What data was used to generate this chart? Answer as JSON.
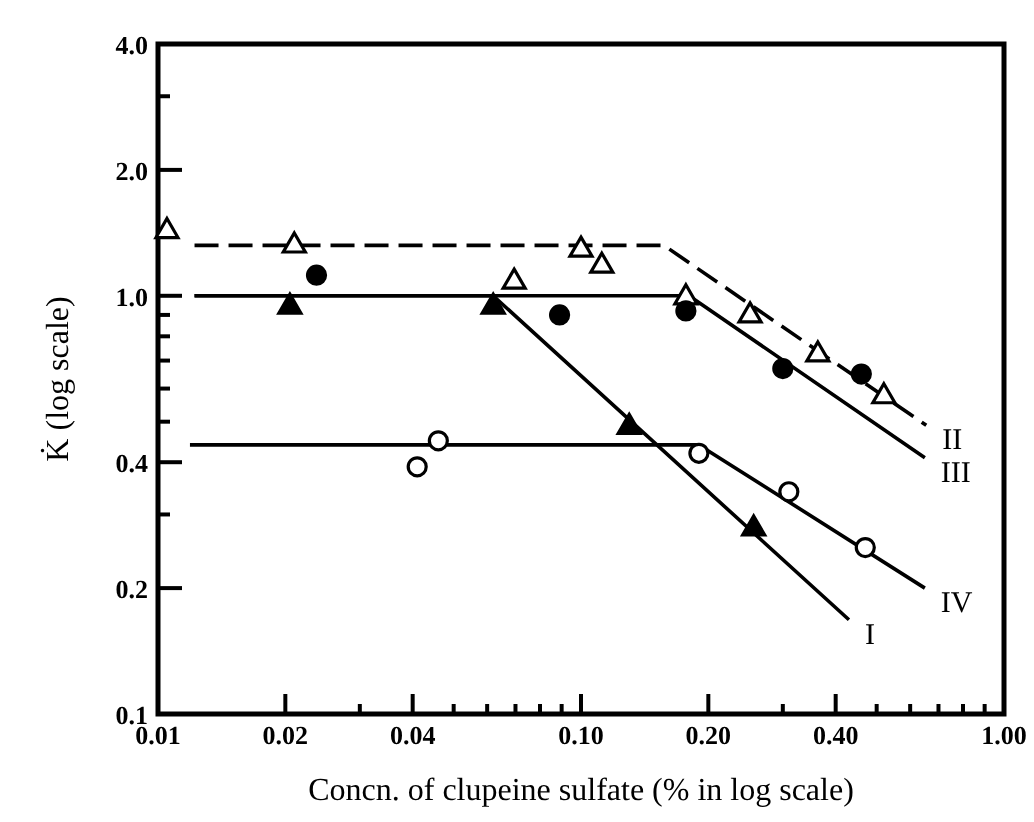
{
  "chart_data": {
    "type": "line",
    "xlabel": "Concn. of clupeine sulfate (% in log scale)",
    "ylabel": "K̇ (log scale)",
    "log": "xy",
    "grid": false,
    "xlim": [
      0.01,
      1.0
    ],
    "ylim": [
      0.1,
      4.0
    ],
    "xticks": [
      {
        "value": 0.01,
        "label": "0.01"
      },
      {
        "value": 0.02,
        "label": "0.02"
      },
      {
        "value": 0.03,
        "label": null
      },
      {
        "value": 0.04,
        "label": "0.04"
      },
      {
        "value": 0.05,
        "label": null
      },
      {
        "value": 0.06,
        "label": null
      },
      {
        "value": 0.07,
        "label": null
      },
      {
        "value": 0.08,
        "label": null
      },
      {
        "value": 0.09,
        "label": null
      },
      {
        "value": 0.1,
        "label": "0.10"
      },
      {
        "value": 0.2,
        "label": "0.20"
      },
      {
        "value": 0.3,
        "label": null
      },
      {
        "value": 0.4,
        "label": "0.40"
      },
      {
        "value": 0.5,
        "label": null
      },
      {
        "value": 0.6,
        "label": null
      },
      {
        "value": 0.7,
        "label": null
      },
      {
        "value": 0.8,
        "label": null
      },
      {
        "value": 0.9,
        "label": null
      },
      {
        "value": 1.0,
        "label": "1.00"
      }
    ],
    "yticks": [
      0.1,
      0.2,
      {
        "value": 0.3,
        "label": null
      },
      0.4,
      {
        "value": 0.5,
        "label": null
      },
      {
        "value": 0.6,
        "label": null
      },
      {
        "value": 0.7,
        "label": null
      },
      {
        "value": 0.8,
        "label": null
      },
      {
        "value": 0.9,
        "label": null
      },
      {
        "value": 1.0,
        "label": "1.0"
      },
      {
        "value": 2.0,
        "label": "2.0"
      },
      {
        "value": 3.0,
        "label": null
      },
      {
        "value": 4.0,
        "label": "4.0"
      }
    ],
    "series": [
      {
        "name": "II",
        "color": "#000000",
        "line_style": "dashed",
        "marker": "none",
        "x": [
          0.0122,
          0.157,
          0.655
        ],
        "values": [
          1.32,
          1.32,
          0.49
        ]
      },
      {
        "name": "III",
        "color": "#000000",
        "line_style": "solid",
        "marker": "none",
        "x": [
          0.0122,
          0.18,
          0.65
        ],
        "values": [
          1.0,
          1.0,
          0.41
        ]
      },
      {
        "name": "IV",
        "color": "#000000",
        "line_style": "solid",
        "marker": "none",
        "x": [
          0.0119,
          0.19,
          0.65
        ],
        "values": [
          0.44,
          0.44,
          0.2
        ]
      },
      {
        "name": "I",
        "color": "#000000",
        "line_style": "solid",
        "marker": "none",
        "x": [
          0.0122,
          0.062,
          0.43
        ],
        "values": [
          1.0,
          1.0,
          0.168
        ]
      },
      {
        "type": "scatter",
        "color": "#ffffff",
        "marker": "triangle",
        "x": [
          0.0105,
          0.021,
          0.0695,
          0.1,
          0.112,
          0.177,
          0.251,
          0.363,
          0.52
        ],
        "values": [
          1.44,
          1.33,
          1.09,
          1.3,
          1.19,
          1.0,
          0.905,
          0.73,
          0.58
        ]
      },
      {
        "type": "scatter",
        "color": "#000000",
        "marker": "circle",
        "x": [
          0.0237,
          0.089,
          0.177,
          0.3,
          0.46
        ],
        "values": [
          1.12,
          0.9,
          0.92,
          0.67,
          0.65
        ]
      },
      {
        "type": "scatter",
        "color": "#ffffff",
        "marker": "circle",
        "x": [
          0.041,
          0.046,
          0.19,
          0.31,
          0.47
        ],
        "values": [
          0.39,
          0.45,
          0.42,
          0.34,
          0.25
        ]
      },
      {
        "type": "scatter",
        "color": "#000000",
        "marker": "triangle",
        "x": [
          0.0205,
          0.062,
          0.13,
          0.256
        ],
        "values": [
          0.95,
          0.95,
          0.49,
          0.28
        ]
      }
    ]
  }
}
